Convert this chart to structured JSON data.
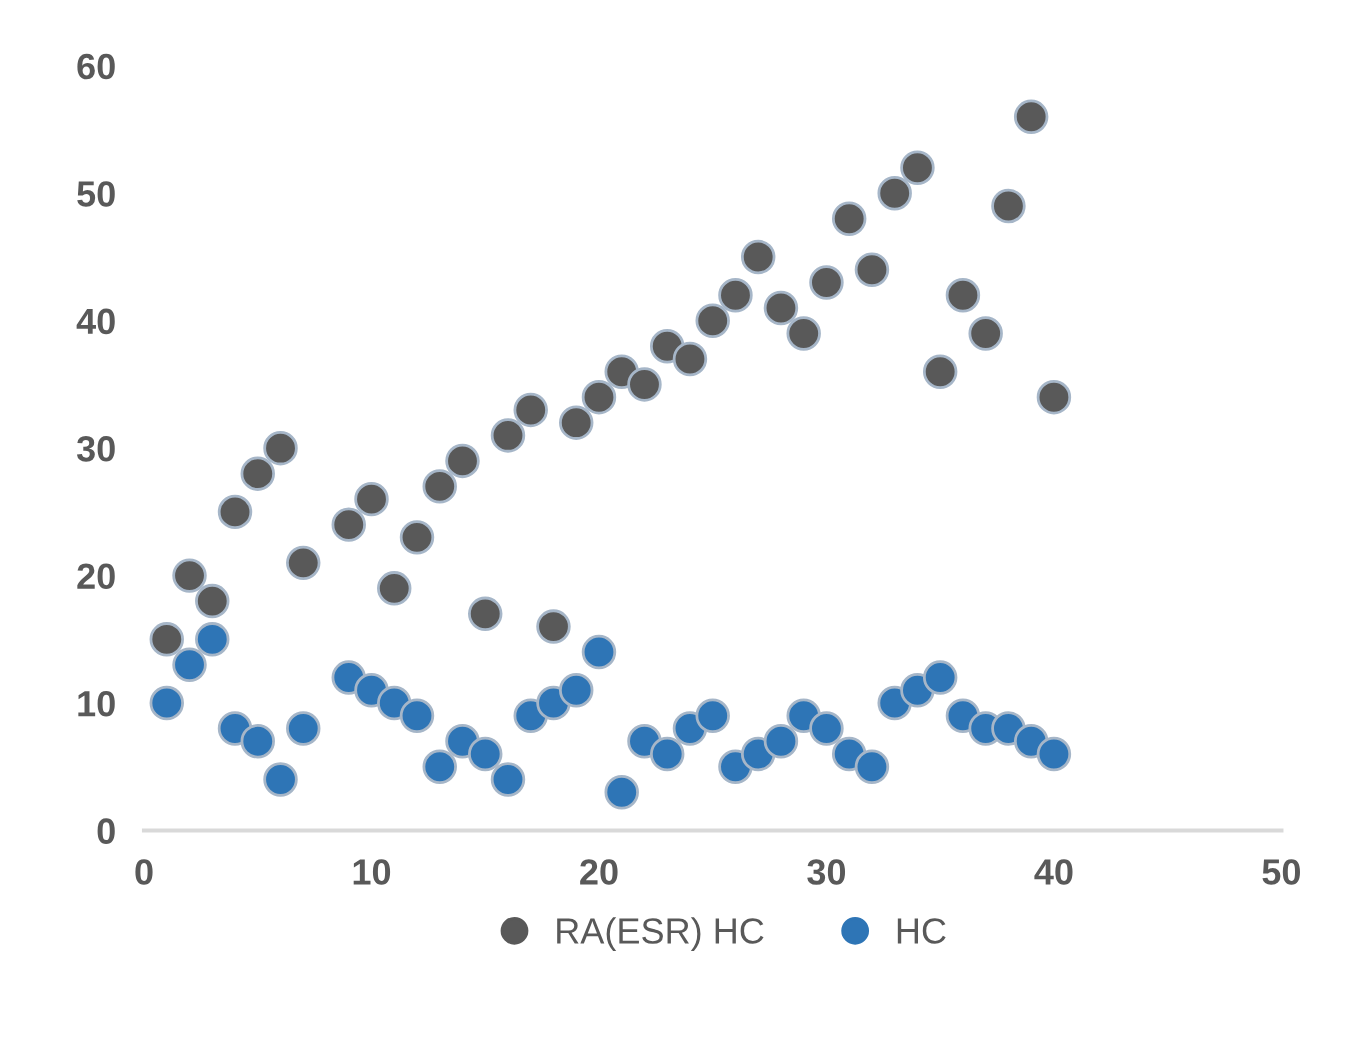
{
  "chart_data": {
    "type": "scatter",
    "series": [
      {
        "name": "RA(ESR) HC",
        "color": "#595959",
        "x": [
          1,
          2,
          3,
          4,
          5,
          6,
          7,
          9,
          10,
          11,
          12,
          13,
          14,
          15,
          16,
          17,
          18,
          19,
          20,
          21,
          22,
          23,
          24,
          25,
          26,
          27,
          28,
          29,
          30,
          31,
          32,
          33,
          34,
          35,
          36,
          37,
          38,
          39,
          40
        ],
        "values": [
          15,
          20,
          18,
          25,
          28,
          30,
          21,
          24,
          26,
          19,
          23,
          27,
          29,
          17,
          31,
          33,
          16,
          32,
          34,
          36,
          35,
          38,
          37,
          40,
          42,
          45,
          41,
          39,
          43,
          48,
          44,
          50,
          52,
          36,
          42,
          39,
          49,
          56,
          34
        ]
      },
      {
        "name": "HC",
        "color": "#2e75b6",
        "x": [
          1,
          2,
          3,
          4,
          5,
          6,
          7,
          9,
          10,
          11,
          12,
          13,
          14,
          15,
          16,
          17,
          18,
          19,
          20,
          21,
          22,
          23,
          24,
          25,
          26,
          27,
          28,
          29,
          30,
          31,
          32,
          33,
          34,
          35,
          36,
          37,
          38,
          39,
          40
        ],
        "values": [
          10,
          13,
          15,
          8,
          7,
          4,
          8,
          12,
          11,
          10,
          9,
          5,
          7,
          6,
          4,
          9,
          10,
          11,
          14,
          3,
          7,
          6,
          8,
          9,
          5,
          6,
          7,
          9,
          8,
          6,
          5,
          10,
          11,
          12,
          9,
          8,
          8,
          7,
          6
        ]
      }
    ],
    "xlim": [
      0,
      50
    ],
    "xticks": [
      0,
      10,
      20,
      30,
      40,
      50
    ],
    "ylim": [
      0,
      60
    ],
    "yticks": [
      0,
      10,
      20,
      30,
      40,
      50,
      60
    ],
    "grid": false,
    "legend": "bottom",
    "marker": "circle"
  }
}
